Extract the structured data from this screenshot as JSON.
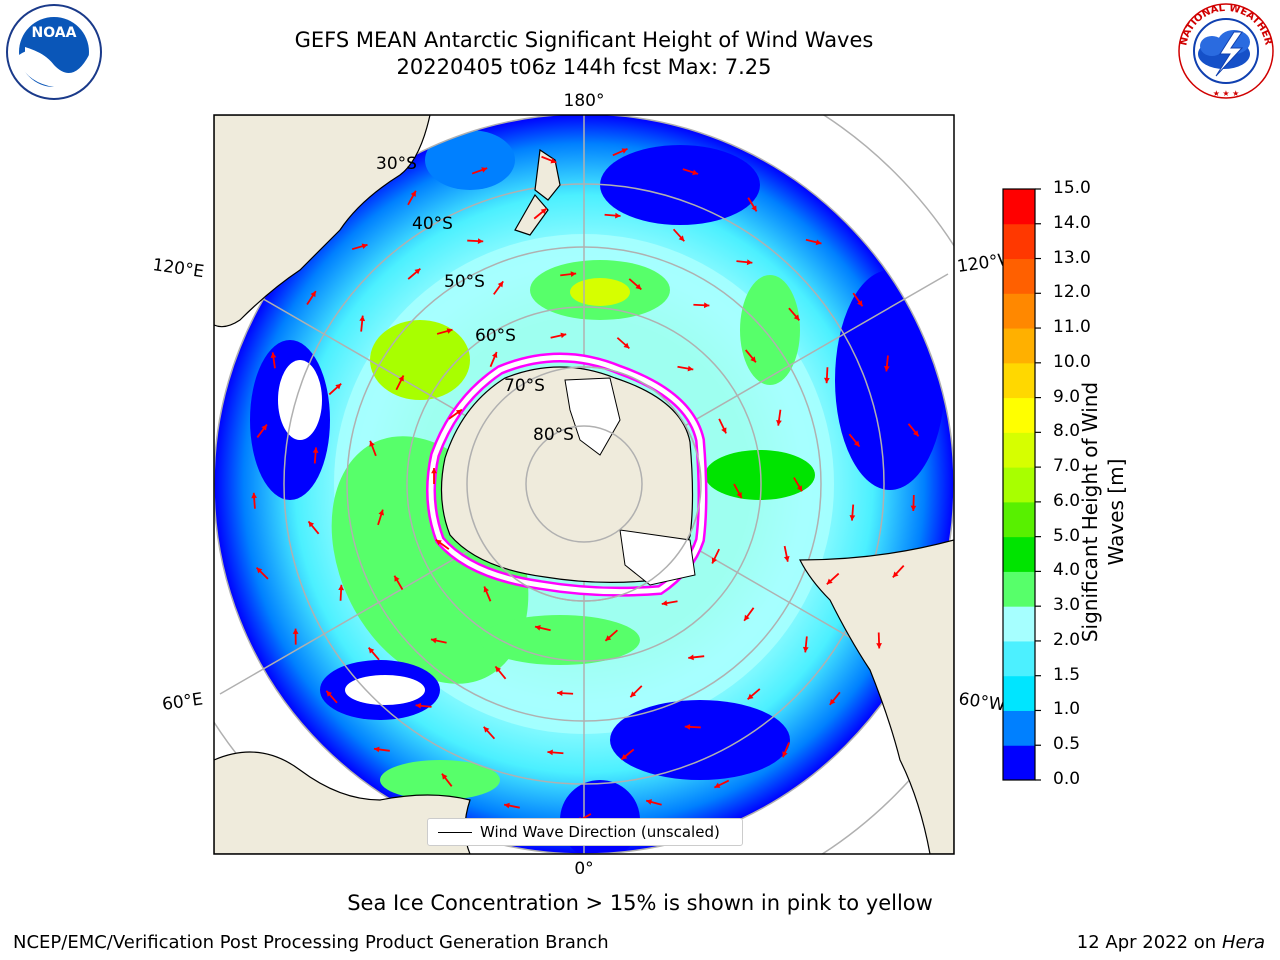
{
  "title_line1": "GEFS MEAN Antarctic Significant Height of Wind Waves",
  "title_line2": "20220405 t06z 144h fcst   Max: 7.25",
  "logos": {
    "left": "noaa-logo",
    "right": "nws-logo",
    "left_text": "NOAA",
    "nws_ring_text": "NATIONAL WEATHER SERVICE"
  },
  "map": {
    "projection": "south-polar-stereographic",
    "lat_labels": [
      "30°S",
      "40°S",
      "50°S",
      "60°S",
      "70°S",
      "80°S"
    ],
    "lon_labels": {
      "top": "180°",
      "bottom": "0°",
      "upper_left": "120°E",
      "upper_right": "120°W",
      "lower_left": "60°E",
      "lower_right": "60°W"
    },
    "legend": "Wind Wave Direction (unscaled)",
    "arrow_color": "#ff0000",
    "land_color": "#efebdc",
    "ice_colors": [
      "#ff00ff",
      "#ffa500",
      "#ffff66"
    ]
  },
  "colorbar": {
    "label": "Significant Height of Wind Waves [m]",
    "ticks": [
      "15.0",
      "14.0",
      "13.0",
      "12.0",
      "11.0",
      "10.0",
      "9.0",
      "8.0",
      "7.0",
      "6.0",
      "5.0",
      "4.0",
      "3.0",
      "2.0",
      "1.5",
      "1.0",
      "0.5",
      "0.0"
    ],
    "colors": [
      "#0000ff",
      "#0080ff",
      "#00e5ff",
      "#4cf0ff",
      "#a6ffff",
      "#57ff6a",
      "#00e400",
      "#58f000",
      "#a8ff00",
      "#d6ff00",
      "#ffff00",
      "#ffd800",
      "#ffb000",
      "#ff8800",
      "#ff6000",
      "#ff3800",
      "#ff0000"
    ]
  },
  "note": "Sea Ice Concentration > 15% is shown in pink to yellow",
  "footer_left": "NCEP/EMC/Verification Post Processing Product Generation Branch",
  "footer_right_date": "12 Apr 2022 on ",
  "footer_right_host": "Hera"
}
